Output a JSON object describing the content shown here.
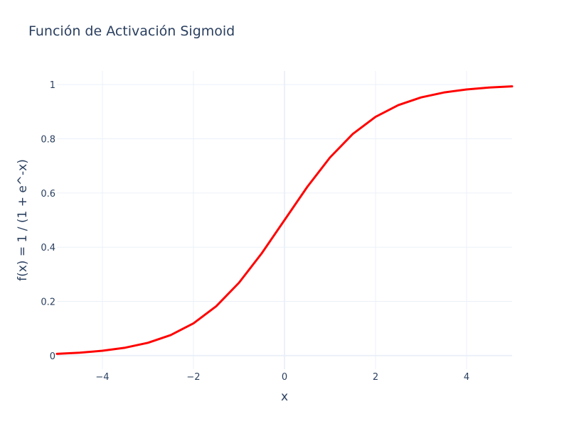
{
  "chart_data": {
    "type": "line",
    "title": "Función de Activación Sigmoid",
    "xlabel": "x",
    "ylabel": "f(x) = 1 / (1 + e^-x)",
    "xlim": [
      -5,
      5
    ],
    "ylim": [
      -0.05,
      1.05
    ],
    "x_ticks": [
      -4,
      -2,
      0,
      2,
      4
    ],
    "x_tick_labels": [
      "−4",
      "−2",
      "0",
      "2",
      "4"
    ],
    "y_ticks": [
      0,
      0.2,
      0.4,
      0.6,
      0.8,
      1
    ],
    "y_tick_labels": [
      "0",
      "0.2",
      "0.4",
      "0.6",
      "0.8",
      "1"
    ],
    "grid": true,
    "line_color": "#ff0000",
    "grid_color": "#ebf0f8",
    "zeroline_color": "#ebf0f8",
    "series": [
      {
        "x": [
          -5,
          -4.5,
          -4,
          -3.5,
          -3,
          -2.5,
          -2,
          -1.5,
          -1,
          -0.5,
          0,
          0.5,
          1,
          1.5,
          2,
          2.5,
          3,
          3.5,
          4,
          4.5,
          5
        ],
        "y": [
          0.0067,
          0.011,
          0.018,
          0.0293,
          0.0474,
          0.0759,
          0.1192,
          0.1824,
          0.2689,
          0.3775,
          0.5,
          0.6225,
          0.7311,
          0.8176,
          0.8808,
          0.9241,
          0.9526,
          0.9707,
          0.982,
          0.989,
          0.9933
        ]
      }
    ]
  }
}
